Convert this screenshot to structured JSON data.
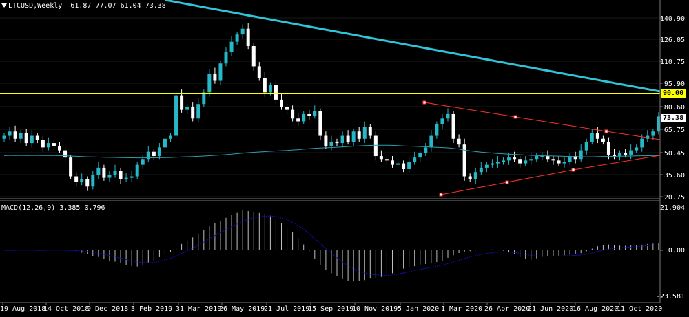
{
  "main_panel": {
    "title": "LTCUSD,Weekly",
    "ohlc": "61.87 77.07 61.04 73.38",
    "price_ticks": [
      "140.90",
      "126.05",
      "110.75",
      "95.90",
      "80.60",
      "65.75",
      "50.45",
      "35.60",
      "20.75"
    ],
    "badges": {
      "level": {
        "text": "90.00",
        "bg": "#ffff00",
        "fg": "#000000"
      },
      "current": {
        "text": "73.38",
        "bg": "#ffffff",
        "fg": "#000000"
      }
    },
    "colors": {
      "background": "#000000",
      "up_candle": "#26b8c6",
      "down_candle": "#ffffff",
      "trendline": "#2fc4d8",
      "horizontal_level": "#ffff00",
      "moving_average": "#2a9fb0",
      "triangle": "#ff3030"
    }
  },
  "macd_panel": {
    "title": "MACD(12,26,9)",
    "values": "3.385 0.796",
    "ticks": [
      "21.904",
      "0.00",
      "-23.581"
    ],
    "colors": {
      "histogram": "#c0c0c0",
      "signal": "#1010b0"
    }
  },
  "date_axis": [
    "19 Aug 2018",
    "14 Oct 2018",
    "9 Dec 2018",
    "3 Feb 2019",
    "31 Mar 2019",
    "26 May 2019",
    "21 Jul 2019",
    "15 Sep 2019",
    "10 Nov 2019",
    "5 Jan 2020",
    "1 Mar 2020",
    "26 Apr 2020",
    "21 Jun 2020",
    "16 Aug 2020",
    "11 Oct 2020"
  ],
  "chart_data": {
    "type": "candlestick",
    "symbol": "LTCUSD",
    "timeframe": "Weekly",
    "closes": [
      60,
      63,
      58,
      62,
      55,
      60,
      57,
      52,
      55,
      53,
      50,
      45,
      32,
      28,
      30,
      25,
      33,
      38,
      31,
      33,
      36,
      30,
      31,
      32,
      40,
      44,
      49,
      46,
      52,
      58,
      60,
      88,
      78,
      80,
      72,
      82,
      90,
      103,
      98,
      110,
      118,
      125,
      130,
      134,
      122,
      108,
      100,
      90,
      95,
      85,
      80,
      78,
      72,
      70,
      75,
      74,
      77,
      60,
      53,
      56,
      55,
      60,
      56,
      63,
      58,
      66,
      60,
      46,
      44,
      43,
      40,
      41,
      37,
      42,
      45,
      48,
      52,
      60,
      68,
      72,
      75,
      58,
      54,
      32,
      30,
      35,
      38,
      40,
      41,
      42,
      43,
      45,
      44,
      41,
      43,
      44,
      46,
      46,
      44,
      43,
      41,
      42,
      46,
      44,
      50,
      56,
      62,
      58,
      56,
      47,
      46,
      48,
      47,
      50,
      52,
      58,
      60,
      63,
      73.38
    ],
    "horizontal_level": 90.0,
    "last_price": 73.38,
    "ylim": [
      18,
      150
    ],
    "macd_range": [
      -23.581,
      21.904
    ]
  }
}
